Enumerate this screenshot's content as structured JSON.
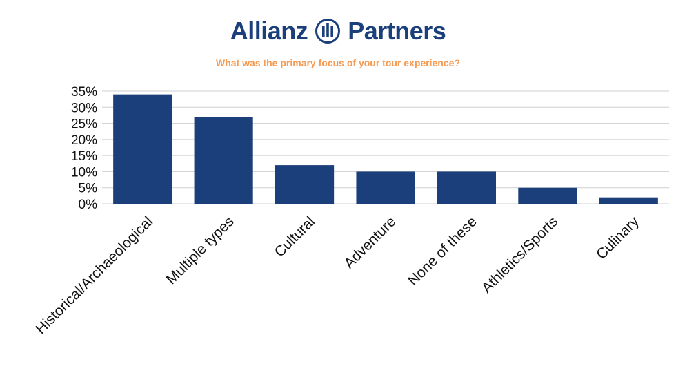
{
  "logo": {
    "word_left": "Allianz",
    "word_right": "Partners",
    "icon": "allianz-eagle-circle-icon",
    "color": "#1b3f7a"
  },
  "subtitle": "What was the primary focus of your tour experience?",
  "colors": {
    "subtitle": "#f59a52",
    "bar": "#1b3f7a",
    "grid": "#cfcfcf",
    "text": "#111111"
  },
  "chart_data": {
    "type": "bar",
    "title": "",
    "xlabel": "",
    "ylabel": "",
    "categories": [
      "Historical/Archaeological",
      "Multiple types",
      "Cultural",
      "Adventure",
      "None of these",
      "Athletics/Sports",
      "Culinary"
    ],
    "values": [
      34,
      27,
      12,
      10,
      10,
      5,
      2
    ],
    "ylim": [
      0,
      35
    ],
    "yticks": [
      0,
      5,
      10,
      15,
      20,
      25,
      30,
      35
    ],
    "ytick_labels": [
      "0%",
      "5%",
      "10%",
      "15%",
      "20%",
      "25%",
      "30%",
      "35%"
    ],
    "grid": true,
    "legend": "none"
  }
}
